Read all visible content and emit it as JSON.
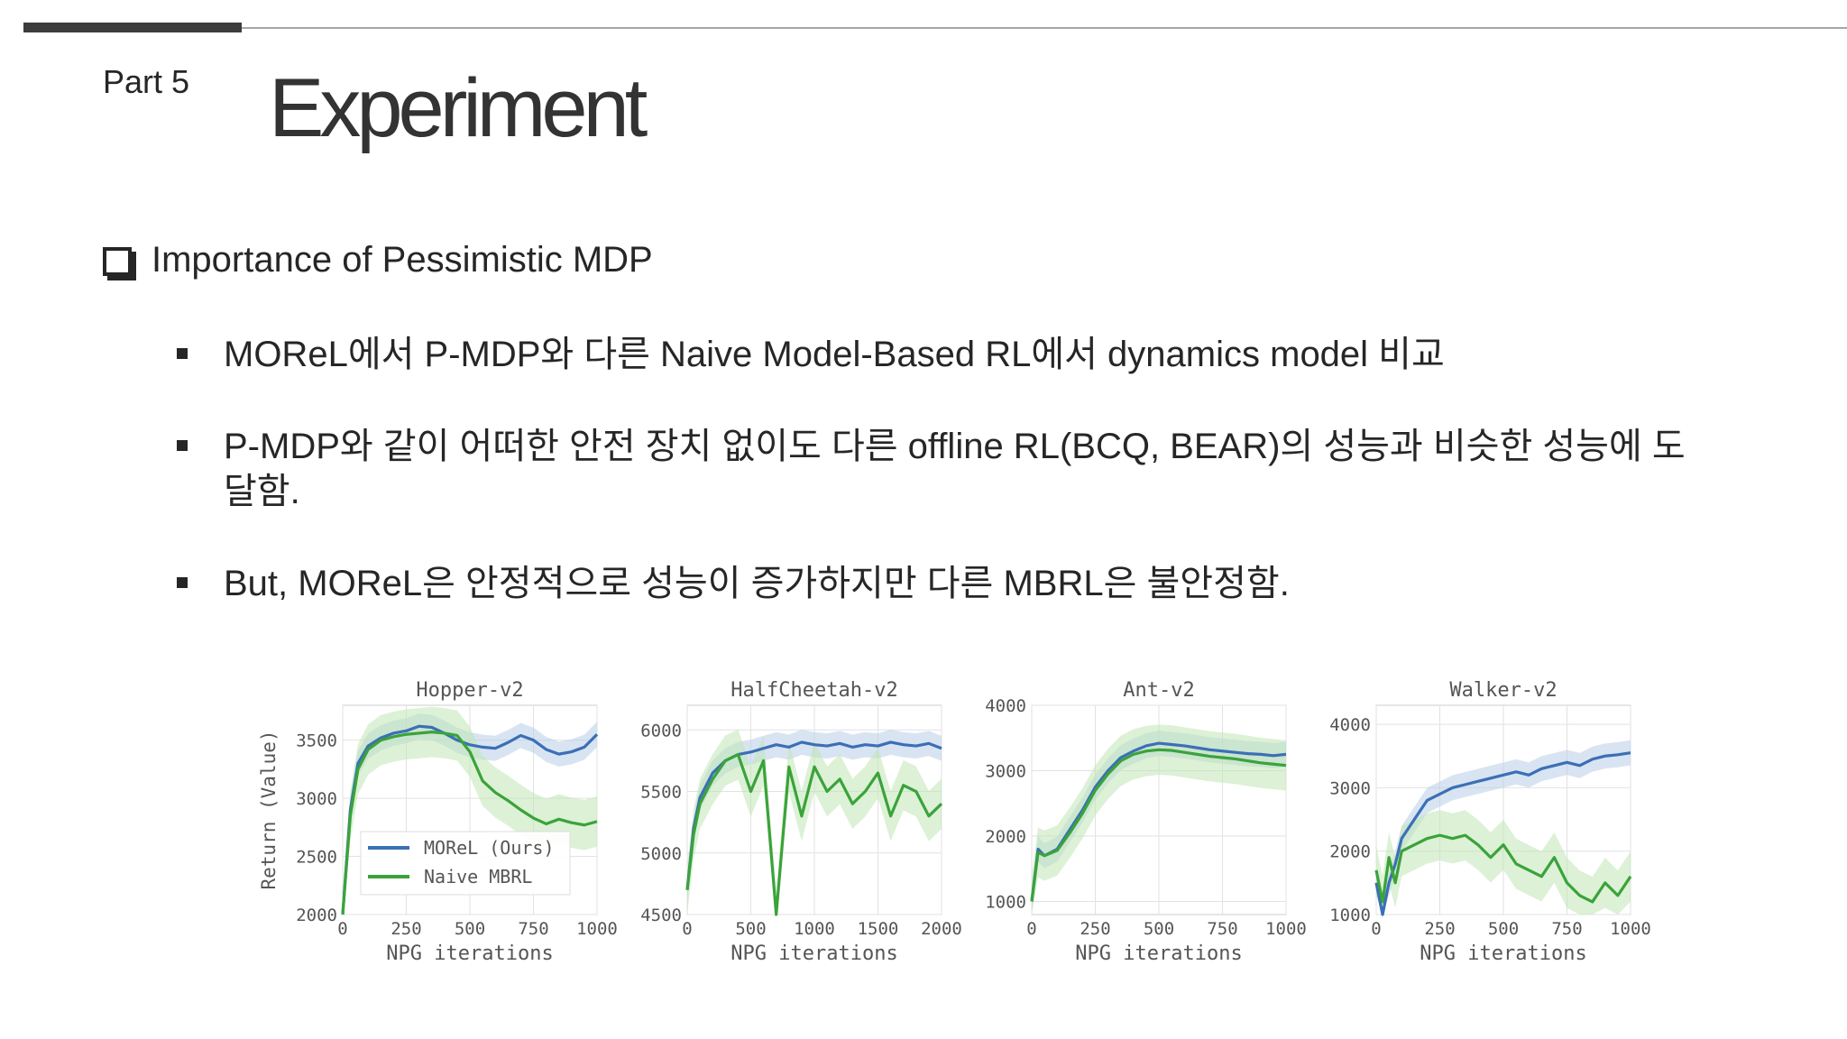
{
  "slide": {
    "part": "Part 5",
    "title": "Experiment",
    "section": "Importance of Pessimistic MDP",
    "bullets": [
      "MOReL에서 P-MDP와 다른 Naive Model-Based RL에서 dynamics model 비교",
      "P-MDP와 같이 어떠한 안전 장치 없이도 다른 offline RL(BCQ, BEAR)의 성능과 비슷한 성능에 도달함.",
      "But, MOReL은 안정적으로 성능이 증가하지만 다른 MBRL은 불안정함."
    ]
  },
  "colors": {
    "morel": "#3b6fb6",
    "naive": "#3aa33a",
    "morel_band": "#b8cde8",
    "naive_band": "#bfe6b5"
  },
  "chart_data": [
    {
      "type": "line",
      "title": "Hopper-v2",
      "xlabel": "NPG iterations",
      "ylabel": "Return (Value)",
      "xlim": [
        0,
        1000
      ],
      "ylim": [
        2000,
        3800
      ],
      "xticks": [
        "0",
        "250",
        "500",
        "750",
        "1000"
      ],
      "yticks": [
        "2000",
        "2500",
        "3000",
        "3500"
      ],
      "legend": "lower-left",
      "series": [
        {
          "name": "MOReL (Ours)",
          "x": [
            0,
            30,
            60,
            100,
            150,
            200,
            250,
            300,
            350,
            400,
            450,
            500,
            550,
            600,
            650,
            700,
            750,
            800,
            850,
            900,
            950,
            1000
          ],
          "values": [
            2000,
            2900,
            3300,
            3450,
            3520,
            3560,
            3580,
            3620,
            3610,
            3560,
            3500,
            3460,
            3440,
            3430,
            3480,
            3540,
            3500,
            3420,
            3380,
            3400,
            3440,
            3550
          ]
        },
        {
          "name": "Naive MBRL",
          "x": [
            0,
            30,
            60,
            100,
            150,
            200,
            250,
            300,
            350,
            400,
            450,
            500,
            550,
            600,
            650,
            700,
            750,
            800,
            850,
            900,
            950,
            1000
          ],
          "values": [
            2000,
            2850,
            3250,
            3420,
            3500,
            3530,
            3550,
            3560,
            3570,
            3560,
            3540,
            3400,
            3150,
            3050,
            2980,
            2900,
            2830,
            2780,
            2820,
            2790,
            2770,
            2800
          ]
        }
      ]
    },
    {
      "type": "line",
      "title": "HalfCheetah-v2",
      "xlabel": "NPG iterations",
      "ylabel": "",
      "xlim": [
        0,
        2000
      ],
      "ylim": [
        4500,
        6200
      ],
      "xticks": [
        "0",
        "500",
        "1000",
        "1500",
        "2000"
      ],
      "yticks": [
        "4500",
        "5000",
        "5500",
        "6000"
      ],
      "series": [
        {
          "name": "MOReL (Ours)",
          "x": [
            0,
            50,
            100,
            200,
            300,
            400,
            500,
            600,
            700,
            800,
            900,
            1000,
            1100,
            1200,
            1300,
            1400,
            1500,
            1600,
            1700,
            1800,
            1900,
            2000
          ],
          "values": [
            4700,
            5200,
            5450,
            5650,
            5750,
            5800,
            5820,
            5850,
            5880,
            5860,
            5900,
            5880,
            5870,
            5890,
            5860,
            5880,
            5870,
            5900,
            5880,
            5870,
            5890,
            5850
          ]
        },
        {
          "name": "Naive MBRL",
          "x": [
            0,
            50,
            100,
            200,
            300,
            400,
            500,
            600,
            700,
            800,
            900,
            1000,
            1100,
            1200,
            1300,
            1400,
            1500,
            1600,
            1700,
            1800,
            1900,
            2000
          ],
          "values": [
            4700,
            5150,
            5400,
            5600,
            5750,
            5800,
            5500,
            5750,
            4500,
            5700,
            5300,
            5700,
            5500,
            5600,
            5400,
            5500,
            5650,
            5300,
            5550,
            5500,
            5300,
            5400
          ]
        }
      ]
    },
    {
      "type": "line",
      "title": "Ant-v2",
      "xlabel": "NPG iterations",
      "ylabel": "",
      "xlim": [
        0,
        1000
      ],
      "ylim": [
        800,
        4000
      ],
      "xticks": [
        "0",
        "250",
        "500",
        "750",
        "1000"
      ],
      "yticks": [
        "1000",
        "2000",
        "3000",
        "4000"
      ],
      "series": [
        {
          "name": "MOReL (Ours)",
          "x": [
            0,
            25,
            50,
            100,
            150,
            200,
            250,
            300,
            350,
            400,
            450,
            500,
            550,
            600,
            650,
            700,
            750,
            800,
            850,
            900,
            950,
            1000
          ],
          "values": [
            1000,
            1800,
            1700,
            1800,
            2100,
            2400,
            2750,
            3000,
            3200,
            3300,
            3380,
            3420,
            3400,
            3380,
            3350,
            3320,
            3300,
            3280,
            3260,
            3250,
            3230,
            3250
          ]
        },
        {
          "name": "Naive MBRL",
          "x": [
            0,
            25,
            50,
            100,
            150,
            200,
            250,
            300,
            350,
            400,
            450,
            500,
            550,
            600,
            650,
            700,
            750,
            800,
            850,
            900,
            950,
            1000
          ],
          "values": [
            1000,
            1750,
            1700,
            1780,
            2050,
            2350,
            2700,
            2950,
            3150,
            3250,
            3300,
            3320,
            3310,
            3280,
            3250,
            3220,
            3200,
            3180,
            3150,
            3120,
            3100,
            3080
          ]
        }
      ]
    },
    {
      "type": "line",
      "title": "Walker-v2",
      "xlabel": "NPG iterations",
      "ylabel": "",
      "xlim": [
        0,
        1000
      ],
      "ylim": [
        1000,
        4300
      ],
      "xticks": [
        "0",
        "250",
        "500",
        "750",
        "1000"
      ],
      "yticks": [
        "1000",
        "2000",
        "3000",
        "4000"
      ],
      "series": [
        {
          "name": "MOReL (Ours)",
          "x": [
            0,
            25,
            50,
            75,
            100,
            150,
            200,
            250,
            300,
            350,
            400,
            450,
            500,
            550,
            600,
            650,
            700,
            750,
            800,
            850,
            900,
            950,
            1000
          ],
          "values": [
            1500,
            1000,
            1500,
            1800,
            2200,
            2500,
            2800,
            2900,
            3000,
            3050,
            3100,
            3150,
            3200,
            3250,
            3200,
            3300,
            3350,
            3400,
            3350,
            3450,
            3500,
            3520,
            3550
          ]
        },
        {
          "name": "Naive MBRL",
          "x": [
            0,
            25,
            50,
            75,
            100,
            150,
            200,
            250,
            300,
            350,
            400,
            450,
            500,
            550,
            600,
            650,
            700,
            750,
            800,
            850,
            900,
            950,
            1000
          ],
          "values": [
            1700,
            1200,
            1900,
            1500,
            2000,
            2100,
            2200,
            2250,
            2200,
            2250,
            2100,
            1900,
            2100,
            1800,
            1700,
            1600,
            1900,
            1500,
            1300,
            1200,
            1500,
            1300,
            1600
          ]
        }
      ]
    }
  ]
}
